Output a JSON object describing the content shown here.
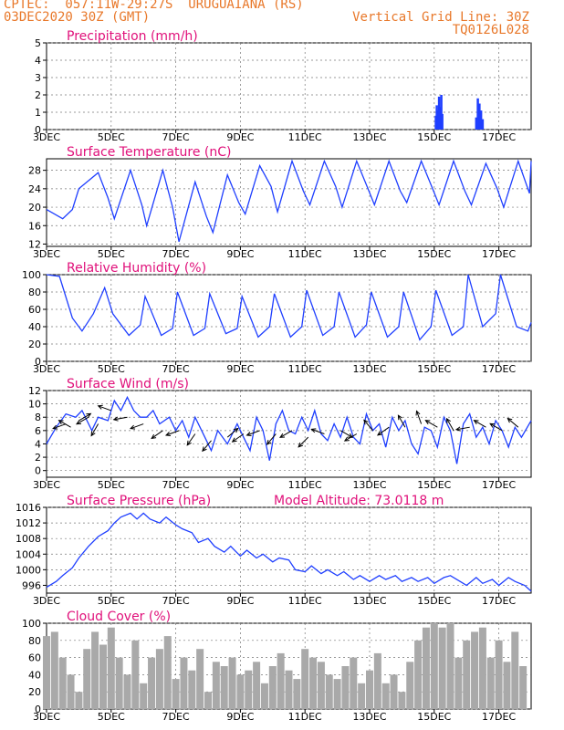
{
  "header": {
    "line1": "CPTEC:  057:11W-29:27S  URUGUAIANA (RS)",
    "line2": "03DEC2020 30Z (GMT)",
    "grid_note": "Vertical Grid Line: 30Z",
    "code": "TQ0126L028",
    "model_altitude": "Model Altitude: 73.0118 m"
  },
  "colors": {
    "header": "#e8782a",
    "title": "#e0107a",
    "line": "#1f3fff",
    "bar": "#a9a9a9",
    "precip": "#1f3fff"
  },
  "x_ticks": [
    "3DEC",
    "5DEC",
    "7DEC",
    "9DEC",
    "11DEC",
    "13DEC",
    "15DEC",
    "17DEC"
  ],
  "chart_data": [
    {
      "type": "bar",
      "title": "Precipitation (mm/h)",
      "ylim": [
        0,
        5
      ],
      "yticks": [
        "0",
        "1",
        "2",
        "3",
        "4",
        "5"
      ],
      "x_days": [
        15.05,
        15.08,
        15.12,
        15.15,
        15.18,
        15.22,
        15.25,
        16.3,
        16.35,
        16.4,
        16.45,
        16.5
      ],
      "values": [
        0.8,
        1.4,
        1.1,
        1.9,
        1.3,
        2.0,
        0.9,
        0.7,
        1.8,
        1.5,
        1.1,
        0.6
      ]
    },
    {
      "type": "line",
      "title": "Surface Temperature (nC)",
      "ylim": [
        11.5,
        30.5
      ],
      "yticks": [
        "12",
        "16",
        "20",
        "24",
        "28"
      ],
      "x_days": [
        3.0,
        3.5,
        3.8,
        4.0,
        4.6,
        4.9,
        5.1,
        5.6,
        5.95,
        6.1,
        6.6,
        6.9,
        7.1,
        7.6,
        7.95,
        8.15,
        8.6,
        8.95,
        9.15,
        9.6,
        9.95,
        10.15,
        10.6,
        10.95,
        11.15,
        11.6,
        11.95,
        12.15,
        12.6,
        12.95,
        13.15,
        13.6,
        13.95,
        14.15,
        14.6,
        14.95,
        15.15,
        15.6,
        15.95,
        16.15,
        16.6,
        16.95,
        17.15,
        17.6,
        17.95,
        18.0
      ],
      "values": [
        19.5,
        17.5,
        19.5,
        24.0,
        27.5,
        22.0,
        17.5,
        28.0,
        20.5,
        16.0,
        28.0,
        20.0,
        12.5,
        25.5,
        18.0,
        14.5,
        27.0,
        21.0,
        18.5,
        29.0,
        24.5,
        19.0,
        30.0,
        23.5,
        20.5,
        30.0,
        24.5,
        20.0,
        30.0,
        24.0,
        20.5,
        30.0,
        23.5,
        21.0,
        30.0,
        24.0,
        20.5,
        30.0,
        23.5,
        20.5,
        29.5,
        24.0,
        20.0,
        30.0,
        23.0,
        30.0
      ]
    },
    {
      "type": "line",
      "title": "Relative Humidity (%)",
      "ylim": [
        0,
        100
      ],
      "yticks": [
        "0",
        "20",
        "40",
        "60",
        "80",
        "100"
      ],
      "x_days": [
        3.0,
        3.4,
        3.8,
        4.1,
        4.45,
        4.8,
        5.05,
        5.55,
        5.9,
        6.05,
        6.55,
        6.9,
        7.05,
        7.55,
        7.9,
        8.05,
        8.55,
        8.9,
        9.05,
        9.55,
        9.9,
        10.05,
        10.55,
        10.9,
        11.05,
        11.55,
        11.9,
        12.05,
        12.55,
        12.9,
        13.05,
        13.55,
        13.9,
        14.05,
        14.55,
        14.9,
        15.05,
        15.55,
        15.9,
        16.05,
        16.5,
        16.9,
        17.05,
        17.55,
        17.9,
        18.0
      ],
      "values": [
        100,
        98,
        50,
        35,
        55,
        85,
        55,
        30,
        42,
        75,
        30,
        38,
        80,
        30,
        38,
        78,
        32,
        38,
        75,
        28,
        40,
        78,
        28,
        40,
        82,
        30,
        40,
        80,
        28,
        42,
        80,
        28,
        40,
        80,
        25,
        40,
        82,
        30,
        40,
        100,
        40,
        55,
        100,
        40,
        35,
        45
      ]
    },
    {
      "type": "line",
      "title": "Surface Wind (m/s)",
      "ylim": [
        -1,
        12
      ],
      "yticks": [
        "0",
        "2",
        "4",
        "6",
        "8",
        "10",
        "12"
      ],
      "x_days": [
        3.0,
        3.3,
        3.6,
        3.9,
        4.1,
        4.4,
        4.6,
        4.9,
        5.1,
        5.3,
        5.5,
        5.7,
        5.9,
        6.1,
        6.3,
        6.5,
        6.8,
        7.0,
        7.2,
        7.4,
        7.6,
        7.9,
        8.1,
        8.3,
        8.6,
        8.9,
        9.1,
        9.3,
        9.5,
        9.7,
        9.9,
        10.1,
        10.3,
        10.5,
        10.7,
        10.9,
        11.1,
        11.3,
        11.5,
        11.7,
        11.9,
        12.1,
        12.3,
        12.5,
        12.7,
        12.9,
        13.1,
        13.3,
        13.5,
        13.7,
        13.9,
        14.1,
        14.3,
        14.5,
        14.7,
        14.9,
        15.1,
        15.3,
        15.5,
        15.7,
        15.9,
        16.1,
        16.3,
        16.5,
        16.7,
        16.9,
        17.1,
        17.3,
        17.5,
        17.7,
        18.0
      ],
      "values": [
        4.0,
        6.5,
        8.5,
        8.0,
        9.0,
        6.0,
        8.0,
        7.5,
        10.5,
        9.0,
        11.0,
        9.0,
        8.0,
        8.0,
        9.0,
        7.0,
        8.0,
        6.0,
        7.5,
        5.0,
        8.0,
        5.0,
        3.0,
        6.0,
        4.0,
        7.0,
        5.0,
        3.0,
        8.0,
        6.0,
        1.5,
        7.0,
        9.0,
        6.0,
        5.5,
        8.0,
        6.0,
        9.0,
        5.5,
        4.5,
        7.0,
        5.0,
        8.0,
        5.0,
        4.0,
        8.5,
        6.0,
        7.0,
        3.5,
        8.0,
        6.0,
        7.5,
        4.0,
        2.5,
        6.5,
        6.0,
        3.5,
        8.0,
        6.0,
        1.0,
        7.0,
        8.5,
        5.0,
        6.5,
        4.0,
        7.5,
        6.0,
        3.5,
        6.5,
        5.0,
        7.5
      ],
      "arrows_x_days": [
        3.6,
        3.75,
        4.0,
        4.3,
        4.6,
        5.0,
        5.5,
        6.0,
        6.6,
        7.1,
        7.6,
        8.1,
        8.6,
        9.1,
        9.6,
        10.1,
        10.6,
        11.1,
        11.6,
        12.1,
        12.6,
        13.1,
        13.6,
        14.1,
        14.6,
        15.1,
        15.6,
        16.1,
        16.6,
        17.1,
        17.6
      ],
      "arrows_y": [
        7.0,
        6.5,
        7.5,
        8.0,
        7.0,
        9.0,
        8.0,
        7.0,
        6.0,
        6.0,
        5.5,
        4.5,
        5.0,
        5.5,
        6.0,
        5.5,
        6.0,
        5.0,
        5.5,
        6.0,
        5.5,
        6.0,
        6.5,
        6.5,
        7.0,
        6.5,
        6.0,
        6.5,
        6.5,
        6.0,
        6.5
      ],
      "arrows_dir_deg": [
        200,
        150,
        30,
        210,
        240,
        160,
        190,
        200,
        215,
        200,
        235,
        230,
        40,
        215,
        200,
        230,
        210,
        225,
        160,
        330,
        210,
        130,
        215,
        120,
        110,
        150,
        120,
        190,
        150,
        150,
        140
      ]
    },
    {
      "type": "line",
      "title": "Surface Pressure (hPa)",
      "ylim": [
        994,
        1016
      ],
      "yticks": [
        "996",
        "1000",
        "1004",
        "1008",
        "1012",
        "1016"
      ],
      "x_days": [
        3.0,
        3.3,
        3.5,
        3.8,
        4.0,
        4.3,
        4.6,
        4.9,
        5.1,
        5.3,
        5.6,
        5.8,
        6.0,
        6.2,
        6.5,
        6.7,
        7.0,
        7.2,
        7.5,
        7.7,
        8.0,
        8.2,
        8.5,
        8.7,
        9.0,
        9.2,
        9.5,
        9.7,
        10.0,
        10.2,
        10.5,
        10.7,
        11.0,
        11.2,
        11.5,
        11.7,
        12.0,
        12.2,
        12.5,
        12.7,
        13.0,
        13.3,
        13.5,
        13.8,
        14.0,
        14.3,
        14.5,
        14.8,
        15.0,
        15.3,
        15.5,
        15.8,
        16.0,
        16.3,
        16.5,
        16.8,
        17.0,
        17.3,
        17.5,
        17.8,
        18.0
      ],
      "values": [
        995.5,
        997.0,
        998.5,
        1000.5,
        1003.0,
        1006.0,
        1008.5,
        1010.0,
        1012.0,
        1013.5,
        1014.5,
        1013.0,
        1014.5,
        1013.0,
        1012.0,
        1013.5,
        1011.5,
        1010.5,
        1009.5,
        1007.0,
        1008.0,
        1006.0,
        1004.5,
        1006.0,
        1003.5,
        1005.0,
        1003.0,
        1004.0,
        1002.0,
        1003.0,
        1002.5,
        1000.0,
        999.5,
        1001.0,
        999.0,
        1000.0,
        998.5,
        999.5,
        997.5,
        998.5,
        997.0,
        998.5,
        997.5,
        998.5,
        997.0,
        998.0,
        997.0,
        998.0,
        996.5,
        998.0,
        998.5,
        997.0,
        996.0,
        998.0,
        996.5,
        997.5,
        996.0,
        998.0,
        997.0,
        996.0,
        994.5
      ]
    },
    {
      "type": "bar",
      "title": "Cloud Cover (%)",
      "ylim": [
        0,
        100
      ],
      "yticks": [
        "0",
        "20",
        "40",
        "60",
        "80",
        "100"
      ],
      "x_days": [
        3.0,
        3.25,
        3.5,
        3.75,
        4.0,
        4.25,
        4.5,
        4.75,
        5.0,
        5.25,
        5.5,
        5.75,
        6.0,
        6.25,
        6.5,
        6.75,
        7.0,
        7.25,
        7.5,
        7.75,
        8.0,
        8.25,
        8.5,
        8.75,
        9.0,
        9.25,
        9.5,
        9.75,
        10.0,
        10.25,
        10.5,
        10.75,
        11.0,
        11.25,
        11.5,
        11.75,
        12.0,
        12.25,
        12.5,
        12.75,
        13.0,
        13.25,
        13.5,
        13.75,
        14.0,
        14.25,
        14.5,
        14.75,
        15.0,
        15.25,
        15.5,
        15.75,
        16.0,
        16.25,
        16.5,
        16.75,
        17.0,
        17.25,
        17.5,
        17.75
      ],
      "values": [
        85,
        90,
        60,
        40,
        20,
        70,
        90,
        75,
        95,
        60,
        40,
        80,
        30,
        60,
        70,
        85,
        35,
        60,
        45,
        70,
        20,
        55,
        50,
        60,
        40,
        45,
        55,
        30,
        50,
        65,
        45,
        35,
        70,
        60,
        55,
        40,
        35,
        50,
        60,
        30,
        45,
        65,
        30,
        40,
        20,
        55,
        80,
        95,
        100,
        95,
        100,
        60,
        80,
        90,
        95,
        60,
        80,
        55,
        90,
        50
      ]
    }
  ]
}
